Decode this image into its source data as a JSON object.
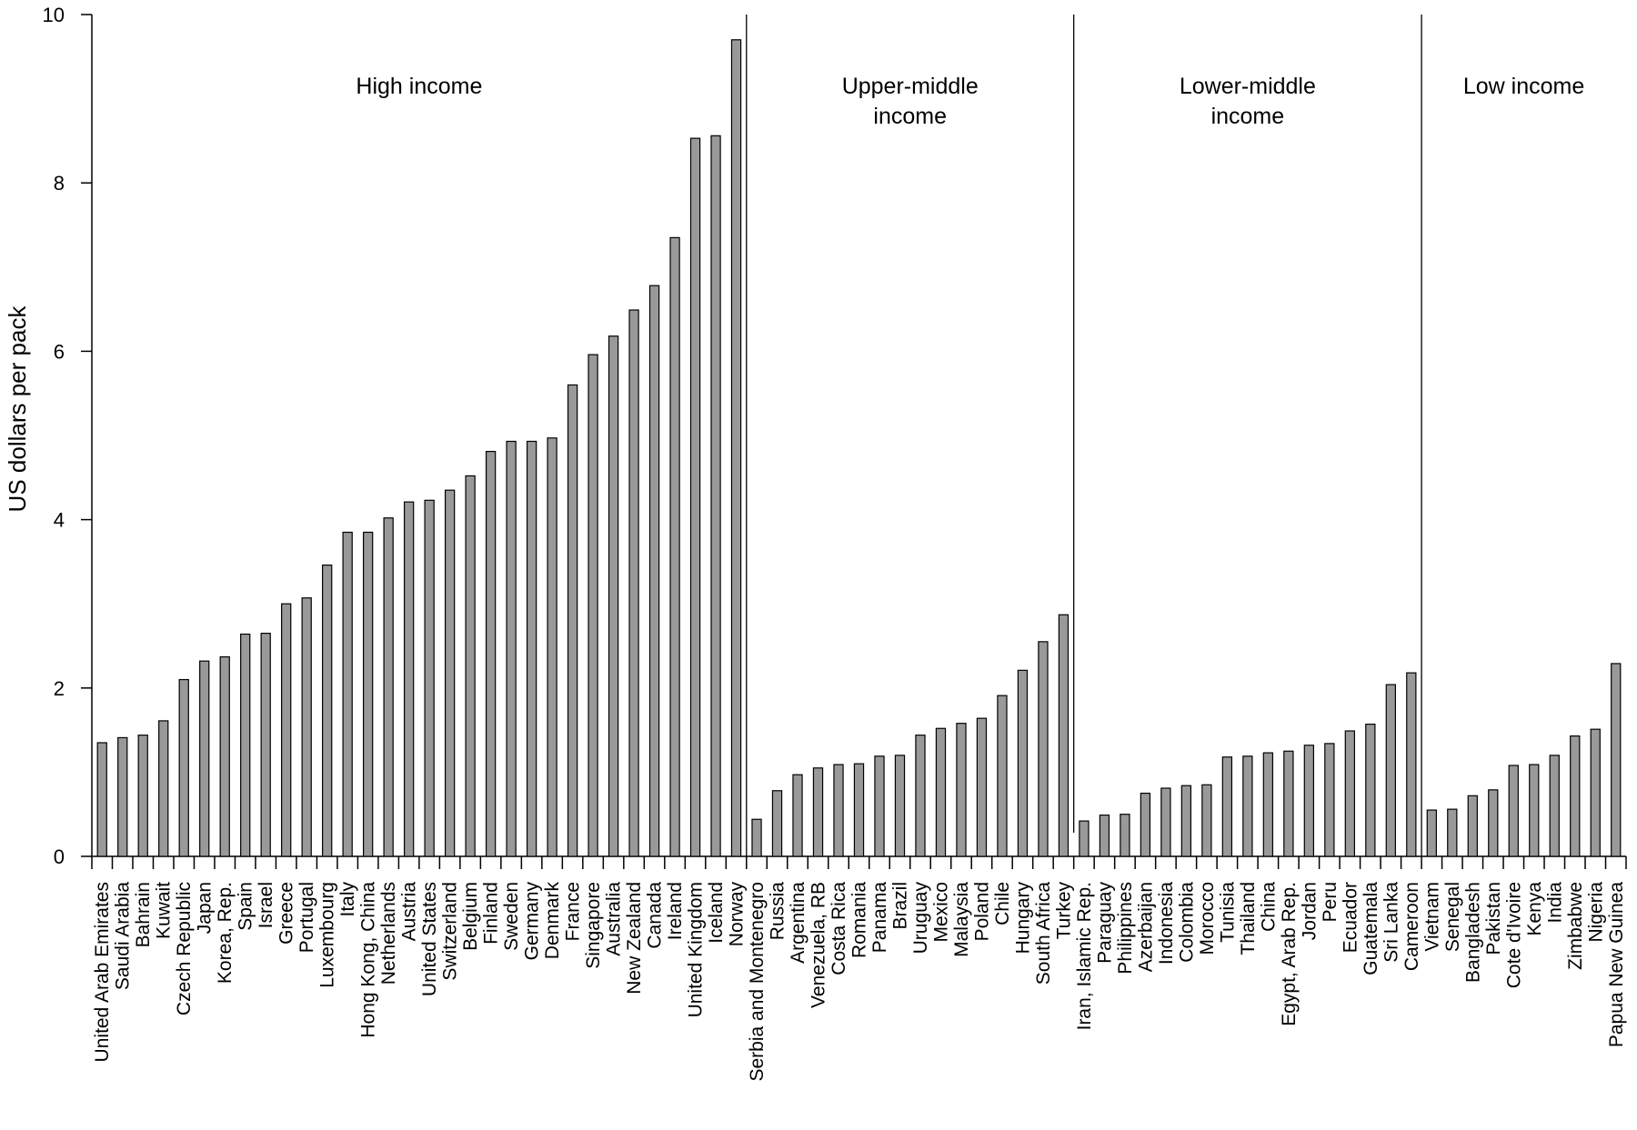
{
  "chart_data": {
    "type": "bar",
    "ylabel": "US dollars per pack",
    "xlabel": "",
    "ylim": [
      0,
      10
    ],
    "yticks": [
      0,
      2,
      4,
      6,
      8,
      10
    ],
    "grid": false,
    "bar_color": "#999999",
    "groups": [
      {
        "label_lines": [
          "High income"
        ],
        "categories": [
          "United Arab Emirates",
          "Saudi Arabia",
          "Bahrain",
          "Kuwait",
          "Czech Republic",
          "Japan",
          "Korea, Rep.",
          "Spain",
          "Israel",
          "Greece",
          "Portugal",
          "Luxembourg",
          "Italy",
          "Hong Kong, China",
          "Netherlands",
          "Austria",
          "United States",
          "Switzerland",
          "Belgium",
          "Finland",
          "Sweden",
          "Germany",
          "Denmark",
          "France",
          "Singapore",
          "Australia",
          "New Zealand",
          "Canada",
          "Ireland",
          "United Kingdom",
          "Iceland",
          "Norway"
        ],
        "values": [
          1.35,
          1.41,
          1.44,
          1.61,
          2.1,
          2.32,
          2.37,
          2.64,
          2.65,
          3.0,
          3.07,
          3.46,
          3.85,
          3.85,
          4.02,
          4.21,
          4.23,
          4.35,
          4.52,
          4.81,
          4.93,
          4.93,
          4.97,
          5.6,
          5.96,
          6.18,
          6.49,
          6.78,
          7.35,
          8.53,
          8.56,
          9.7
        ]
      },
      {
        "label_lines": [
          "Upper-middle",
          "income"
        ],
        "categories": [
          "Serbia and Montenegro",
          "Russia",
          "Argentina",
          "Venezuela, RB",
          "Costa Rica",
          "Romania",
          "Panama",
          "Brazil",
          "Uruguay",
          "Mexico",
          "Malaysia",
          "Poland",
          "Chile",
          "Hungary",
          "South Africa",
          "Turkey"
        ],
        "values": [
          0.44,
          0.78,
          0.97,
          1.05,
          1.09,
          1.1,
          1.19,
          1.2,
          1.44,
          1.52,
          1.58,
          1.64,
          1.91,
          2.21,
          2.55,
          2.87
        ]
      },
      {
        "label_lines": [
          "Lower-middle",
          "income"
        ],
        "categories": [
          "Iran, Islamic Rep.",
          "Paraguay",
          "Philippines",
          "Azerbaijan",
          "Indonesia",
          "Colombia",
          "Morocco",
          "Tunisia",
          "Thailand",
          "China",
          "Egypt, Arab Rep.",
          "Jordan",
          "Peru",
          "Ecuador",
          "Guatemala",
          "Sri Lanka",
          "Cameroon"
        ],
        "values": [
          0.42,
          0.49,
          0.5,
          0.75,
          0.81,
          0.84,
          0.85,
          1.18,
          1.19,
          1.23,
          1.25,
          1.32,
          1.34,
          1.49,
          1.57,
          2.04,
          2.18
        ]
      },
      {
        "label_lines": [
          "Low income"
        ],
        "categories": [
          "Vietnam",
          "Senegal",
          "Bangladesh",
          "Pakistan",
          "Cote d'Ivoire",
          "Kenya",
          "India",
          "Zimbabwe",
          "Nigeria",
          "Papua New Guinea"
        ],
        "values": [
          0.55,
          0.56,
          0.72,
          0.79,
          1.08,
          1.09,
          1.2,
          1.43,
          1.51,
          2.29
        ]
      }
    ]
  }
}
